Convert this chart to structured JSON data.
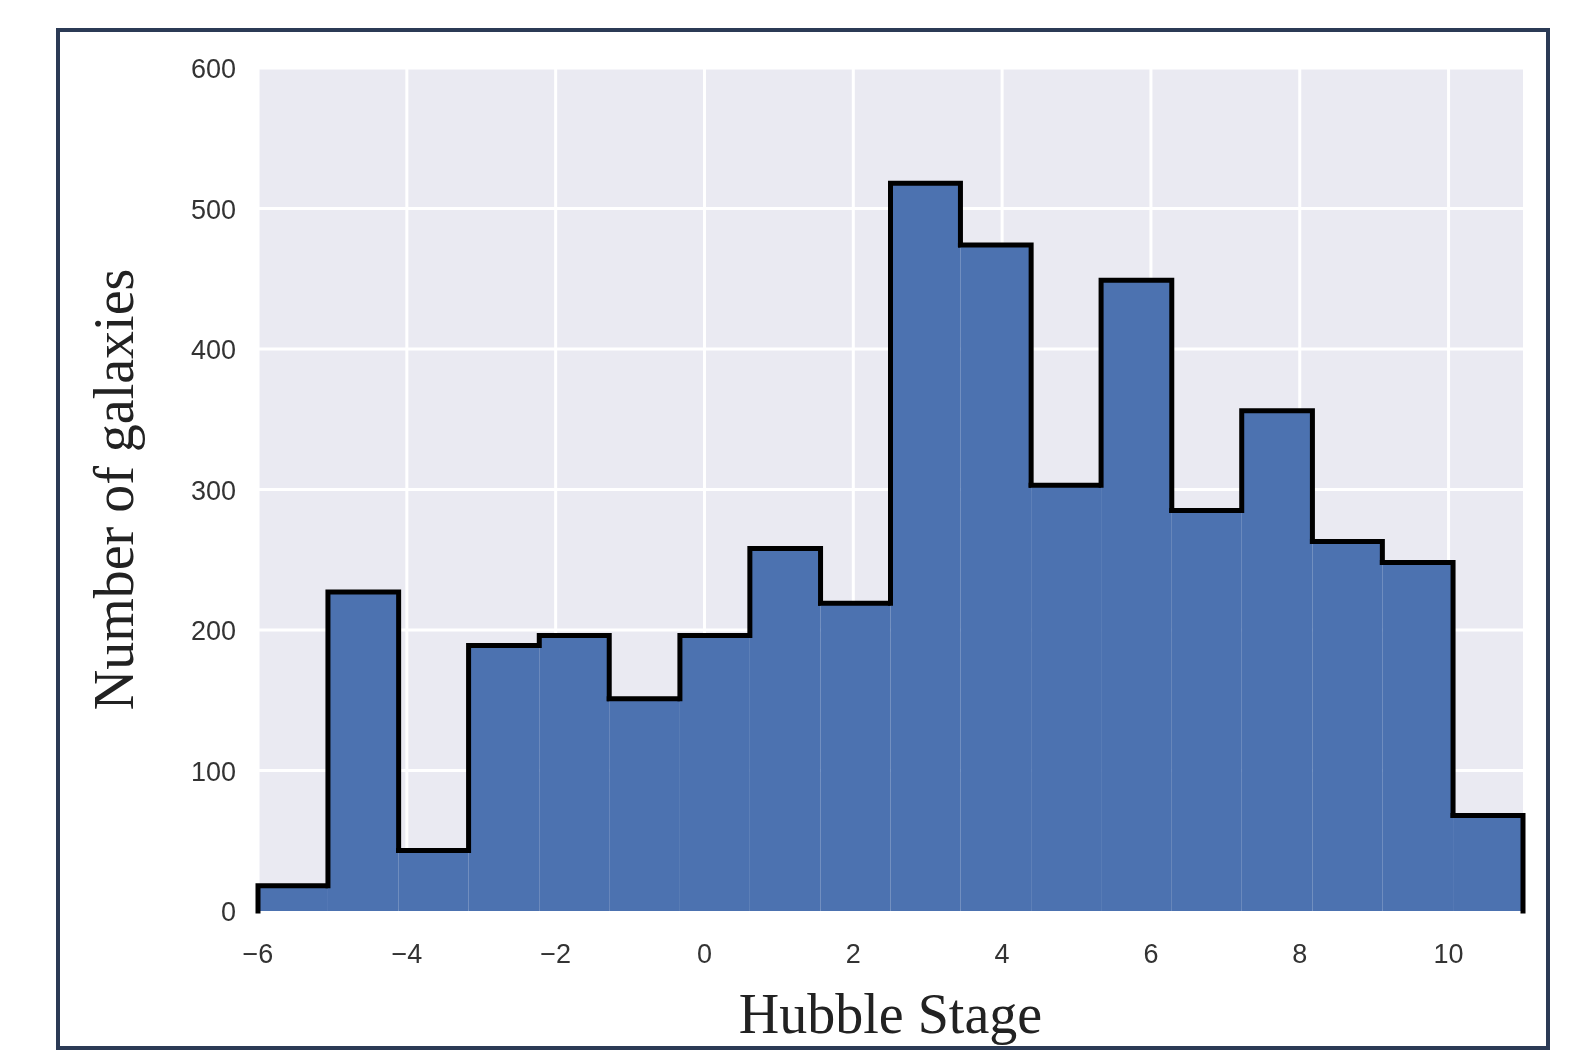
{
  "chart_data": {
    "type": "histogram",
    "xlabel": "Hubble Stage",
    "ylabel": "Number of galaxies",
    "bins": [
      -6,
      -5.06,
      -4.11,
      -3.17,
      -2.22,
      -1.28,
      -0.33,
      0.61,
      1.56,
      2.5,
      3.44,
      4.39,
      5.33,
      6.28,
      7.22,
      8.17,
      9.11,
      10.06,
      11
    ],
    "values": [
      18,
      227,
      43,
      189,
      196,
      151,
      196,
      258,
      219,
      518,
      474,
      303,
      449,
      285,
      356,
      263,
      248,
      68
    ],
    "color": "#4c72b0",
    "xlim": [
      -6,
      11
    ],
    "xticks": [
      {
        "value": -6,
        "label": "−6"
      },
      {
        "value": -4,
        "label": "−4"
      },
      {
        "value": -2,
        "label": "−2"
      },
      0,
      2,
      4,
      6,
      8,
      10
    ],
    "ylim": [
      0,
      600
    ],
    "yticks": [
      0,
      100,
      200,
      300,
      400,
      500,
      600
    ],
    "grid": true
  }
}
